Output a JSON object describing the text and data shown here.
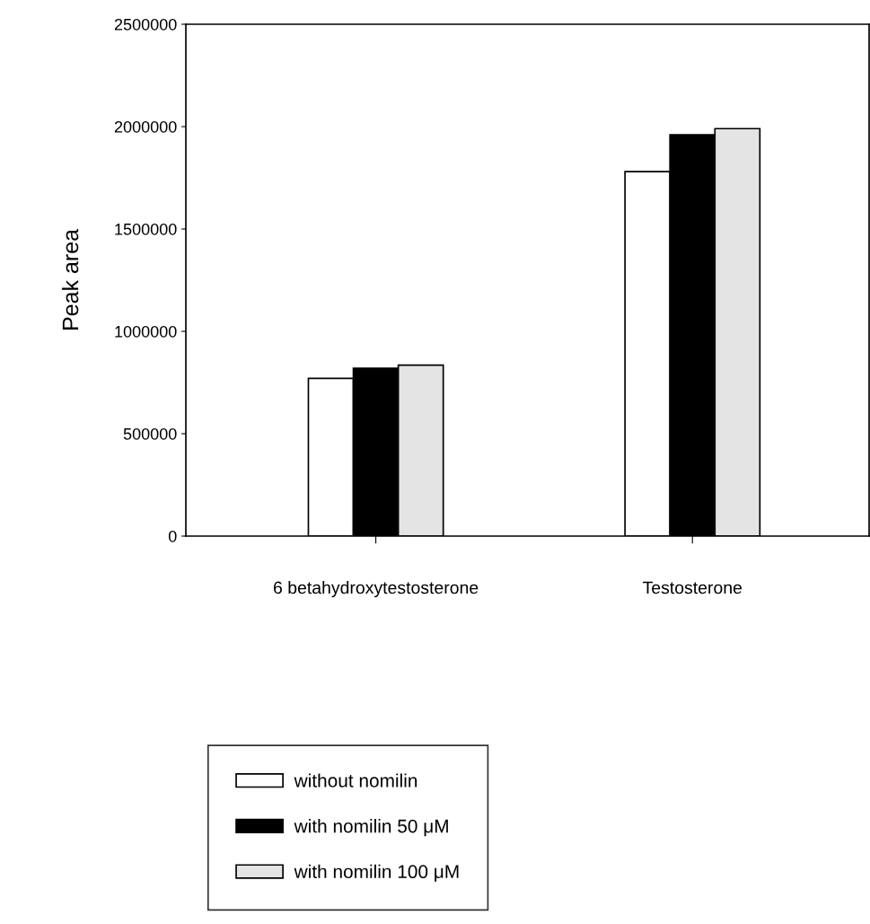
{
  "chart_data": {
    "type": "bar",
    "ylabel": "Peak area",
    "categories": [
      "6 betahydroxytestosterone",
      "Testosterone"
    ],
    "series": [
      {
        "name": "without nomilin",
        "color": "#ffffff",
        "values": [
          770000,
          1780000
        ]
      },
      {
        "name": "with nomilin 50 μM",
        "color": "#000000",
        "values": [
          820000,
          1960000
        ]
      },
      {
        "name": "with nomilin 100 μM",
        "color": "#e4e4e4",
        "values": [
          835000,
          1990000
        ]
      }
    ],
    "ylim": [
      0,
      2500000
    ],
    "yticks": [
      0,
      500000,
      1000000,
      1500000,
      2000000,
      2500000
    ],
    "grid": false,
    "legend": "bottom"
  }
}
